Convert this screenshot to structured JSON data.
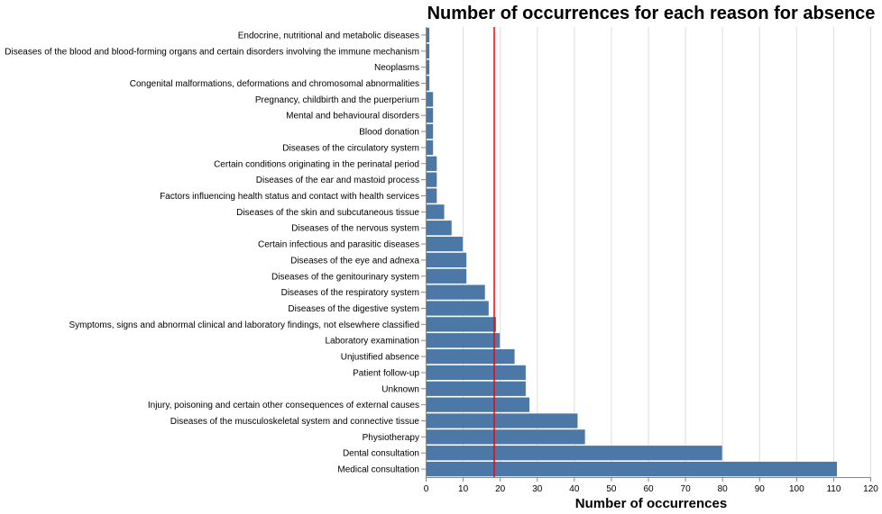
{
  "chart_data": {
    "type": "bar",
    "orientation": "horizontal",
    "title": "Number of occurrences for each reason for absence",
    "xlabel": "Number of occurrences",
    "ylabel": "",
    "xlim": [
      0,
      120
    ],
    "x_ticks": [
      0,
      10,
      20,
      30,
      40,
      50,
      60,
      70,
      80,
      90,
      100,
      110,
      120
    ],
    "grid": true,
    "bar_color": "#4c78a8",
    "reference_line": {
      "value": 18.5,
      "color": "#ff0000"
    },
    "categories": [
      "Endocrine, nutritional and metabolic diseases",
      "Diseases of the blood and blood-forming organs and certain disorders involving the immune mechanism",
      "Neoplasms",
      "Congenital malformations, deformations and chromosomal abnormalities",
      "Pregnancy, childbirth and the puerperium",
      "Mental and behavioural disorders",
      "Blood donation",
      "Diseases of the circulatory system",
      "Certain conditions originating in the perinatal period",
      "Diseases of the ear and mastoid process",
      "Factors influencing health status and contact with health services",
      "Diseases of the skin and subcutaneous tissue",
      "Diseases of the nervous system",
      "Certain infectious and parasitic diseases",
      "Diseases of the eye and adnexa",
      "Diseases of the genitourinary system",
      "Diseases of the respiratory system",
      "Diseases of the digestive system",
      "Symptoms, signs and abnormal clinical and laboratory findings, not elsewhere classified",
      "Laboratory examination",
      "Unjustified absence",
      "Patient follow-up",
      "Unknown",
      "Injury, poisoning and certain other consequences of external causes",
      "Diseases of the musculoskeletal system and connective tissue",
      "Physiotherapy",
      "Dental consultation",
      "Medical consultation"
    ],
    "values": [
      1,
      1,
      1,
      1,
      2,
      2,
      2,
      2,
      3,
      3,
      3,
      5,
      7,
      10,
      11,
      11,
      16,
      17,
      19,
      20,
      24,
      27,
      27,
      28,
      41,
      43,
      80,
      111
    ]
  }
}
